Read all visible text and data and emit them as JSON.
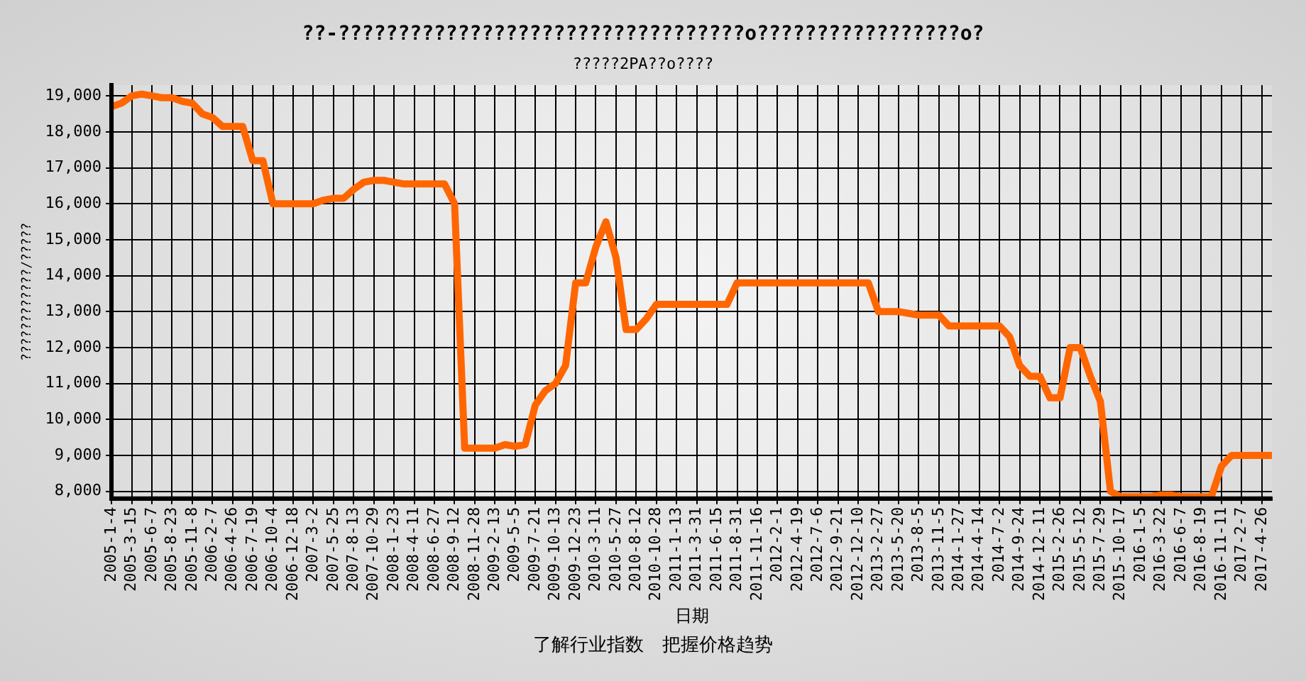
{
  "chart_data": {
    "type": "line",
    "title": "??-??????????????????????????????????o?????????????????o?",
    "subtitle": "?????2PA??o????",
    "xlabel": "日期",
    "ylabel": "????????????/?????",
    "annotations": [
      "了解行业指数　把握价格趋势"
    ],
    "categories": [
      "2005-1-4",
      null,
      "2005-3-15",
      null,
      "2005-6-7",
      null,
      "2005-8-23",
      null,
      "2005-11-8",
      null,
      "2006-2-7",
      null,
      "2006-4-26",
      null,
      "2006-7-19",
      null,
      "2006-10-4",
      null,
      "2006-12-18",
      null,
      "2007-3-2",
      null,
      "2007-5-25",
      null,
      "2007-8-13",
      null,
      "2007-10-29",
      null,
      "2008-1-23",
      null,
      "2008-4-11",
      null,
      "2008-6-27",
      null,
      "2008-9-12",
      null,
      "2008-11-28",
      null,
      "2009-2-13",
      null,
      "2009-5-5",
      null,
      "2009-7-21",
      null,
      "2009-10-13",
      null,
      "2009-12-23",
      null,
      "2010-3-11",
      null,
      "2010-5-27",
      null,
      "2010-8-12",
      null,
      "2010-10-28",
      null,
      "2011-1-13",
      null,
      "2011-3-31",
      null,
      "2011-6-15",
      null,
      "2011-8-31",
      null,
      "2011-11-16",
      null,
      "2012-2-1",
      null,
      "2012-4-19",
      null,
      "2012-7-6",
      null,
      "2012-9-21",
      null,
      "2012-12-10",
      null,
      "2013-2-27",
      null,
      "2013-5-20",
      null,
      "2013-8-5",
      null,
      "2013-11-5",
      null,
      "2014-1-27",
      null,
      "2014-4-14",
      null,
      "2014-7-2",
      null,
      "2014-9-24",
      null,
      "2014-12-11",
      null,
      "2015-2-26",
      null,
      "2015-5-12",
      null,
      "2015-7-29",
      null,
      "2015-10-17",
      null,
      "2016-1-5",
      null,
      "2016-3-22",
      null,
      "2016-6-7",
      null,
      "2016-8-19",
      null,
      "2016-11-11",
      null,
      "2017-2-7",
      null,
      "2017-4-26",
      null
    ],
    "series": [
      {
        "color": "#ff6600",
        "values": [
          18700,
          18800,
          19000,
          19050,
          19000,
          18950,
          18950,
          18850,
          18800,
          18500,
          18400,
          18150,
          18150,
          18150,
          17200,
          17200,
          16000,
          16000,
          16000,
          16000,
          16000,
          16100,
          16150,
          16150,
          16400,
          16600,
          16650,
          16650,
          16600,
          16550,
          16550,
          16550,
          16550,
          16550,
          16000,
          9200,
          9200,
          9200,
          9200,
          9300,
          9250,
          9300,
          10400,
          10800,
          11000,
          11500,
          13800,
          13800,
          14800,
          15500,
          14500,
          12500,
          12500,
          12800,
          13200,
          13200,
          13200,
          13200,
          13200,
          13200,
          13200,
          13200,
          13800,
          13800,
          13800,
          13800,
          13800,
          13800,
          13800,
          13800,
          13800,
          13800,
          13800,
          13800,
          13800,
          13800,
          13000,
          13000,
          13000,
          12950,
          12900,
          12900,
          12900,
          12600,
          12600,
          12600,
          12600,
          12600,
          12600,
          12300,
          11500,
          11200,
          11200,
          10600,
          10600,
          12000,
          12000,
          11200,
          10500,
          8000,
          7850,
          7850,
          7850,
          7850,
          7900,
          7900,
          7850,
          7850,
          7850,
          7850,
          8700,
          9000,
          9000,
          9000,
          9000,
          9000
        ]
      }
    ],
    "ylim": [
      7800,
      19300
    ],
    "yticks": [
      {
        "value": 8000,
        "label": "8,000"
      },
      {
        "value": 9000,
        "label": "9,000"
      },
      {
        "value": 10000,
        "label": "10,000"
      },
      {
        "value": 11000,
        "label": "11,000"
      },
      {
        "value": 12000,
        "label": "12,000"
      },
      {
        "value": 13000,
        "label": "13,000"
      },
      {
        "value": 14000,
        "label": "14,000"
      },
      {
        "value": 15000,
        "label": "15,000"
      },
      {
        "value": 16000,
        "label": "16,000"
      },
      {
        "value": 17000,
        "label": "17,000"
      },
      {
        "value": 18000,
        "label": "18,000"
      },
      {
        "value": 19000,
        "label": "19,000"
      }
    ],
    "grid": true,
    "marker": "none",
    "line_style": "solid"
  }
}
